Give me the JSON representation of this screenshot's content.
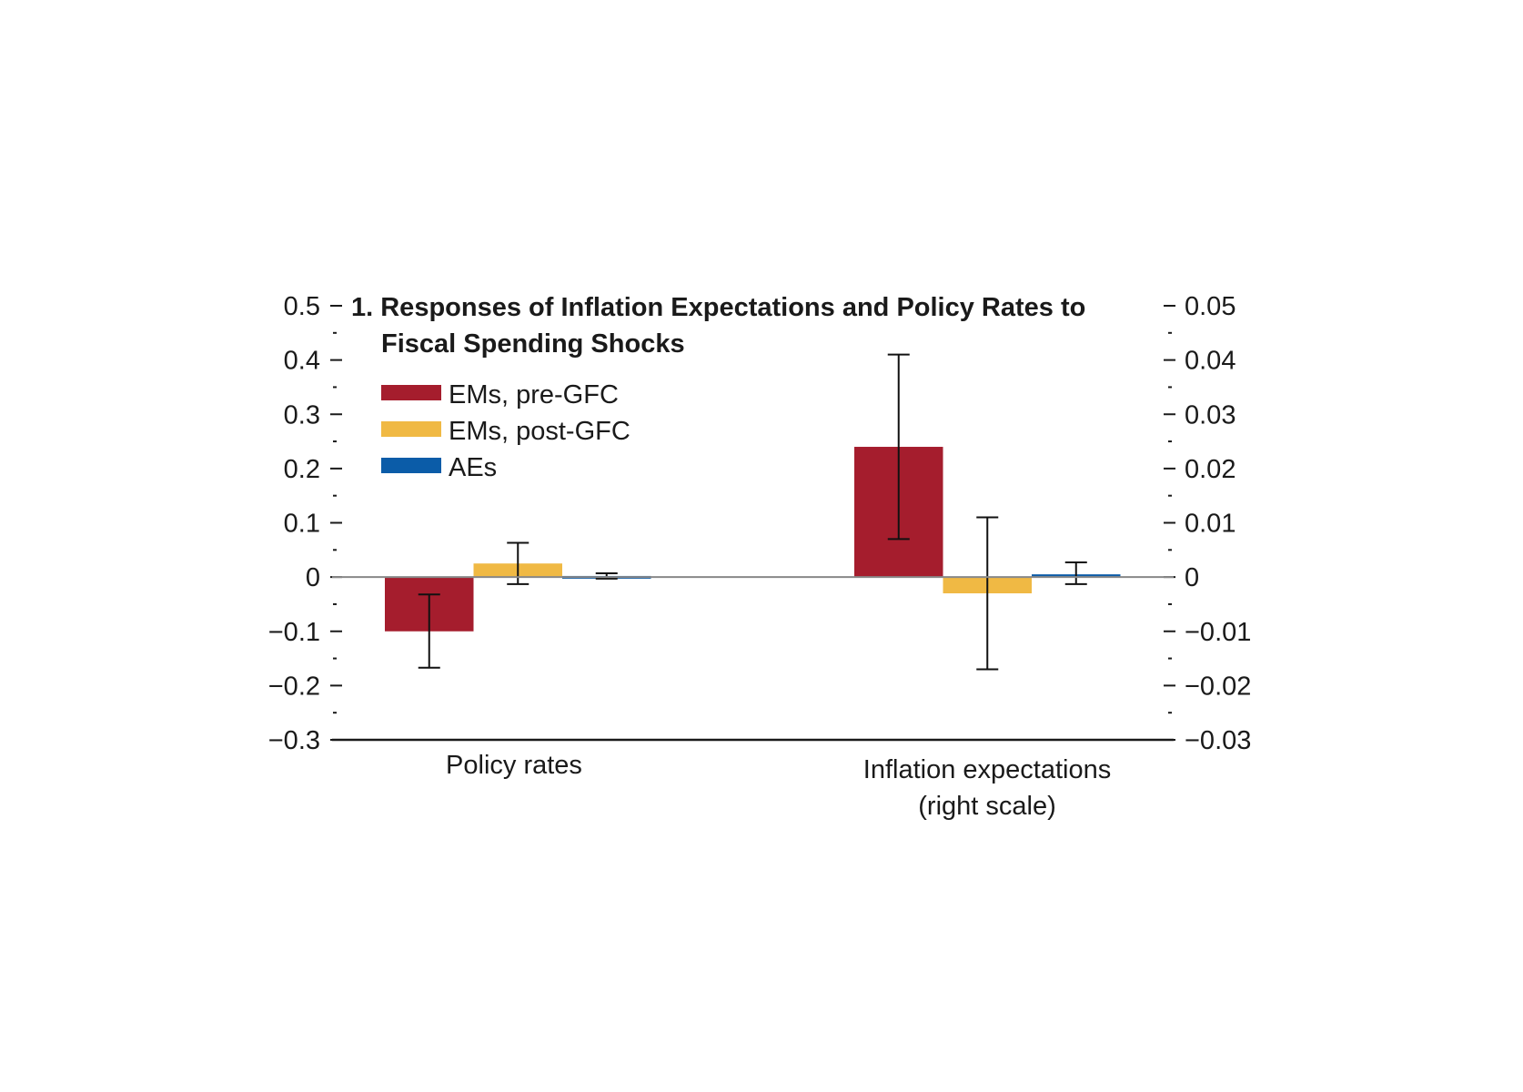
{
  "chart_data": {
    "type": "bar",
    "title_line1": "1. Responses of Inflation Expectations and Policy Rates to",
    "title_line2": "Fiscal Spending Shocks",
    "categories": [
      "Policy rates",
      "Inflation expectations"
    ],
    "category_sublabels": [
      "",
      "(right scale)"
    ],
    "category_axis": [
      "left",
      "right"
    ],
    "left_axis": {
      "ylim": [
        -0.3,
        0.5
      ],
      "ticks": [
        "0.5",
        "0.4",
        "0.3",
        "0.2",
        "0.1",
        "0",
        "−0.1",
        "−0.2",
        "−0.3"
      ]
    },
    "right_axis": {
      "ylim": [
        -0.03,
        0.05
      ],
      "ticks": [
        "0.05",
        "0.04",
        "0.03",
        "0.02",
        "0.01",
        "0",
        "−0.01",
        "−0.02",
        "−0.03"
      ]
    },
    "series": [
      {
        "name": "EMs, pre-GFC",
        "color": "#a51d2d",
        "values": [
          -0.1,
          0.024
        ],
        "ci_low": [
          -0.167,
          0.007
        ],
        "ci_high": [
          -0.032,
          0.041
        ]
      },
      {
        "name": "EMs, post-GFC",
        "color": "#f0b944",
        "values": [
          0.025,
          -0.003
        ],
        "ci_low": [
          -0.013,
          -0.017
        ],
        "ci_high": [
          0.063,
          0.011
        ]
      },
      {
        "name": "AEs",
        "color": "#0b5ca8",
        "values": [
          0.002,
          0.0005
        ],
        "ci_low": [
          -0.003,
          -0.0013
        ],
        "ci_high": [
          0.007,
          0.0027
        ]
      }
    ],
    "legend_position": "top-left",
    "grid": false
  }
}
